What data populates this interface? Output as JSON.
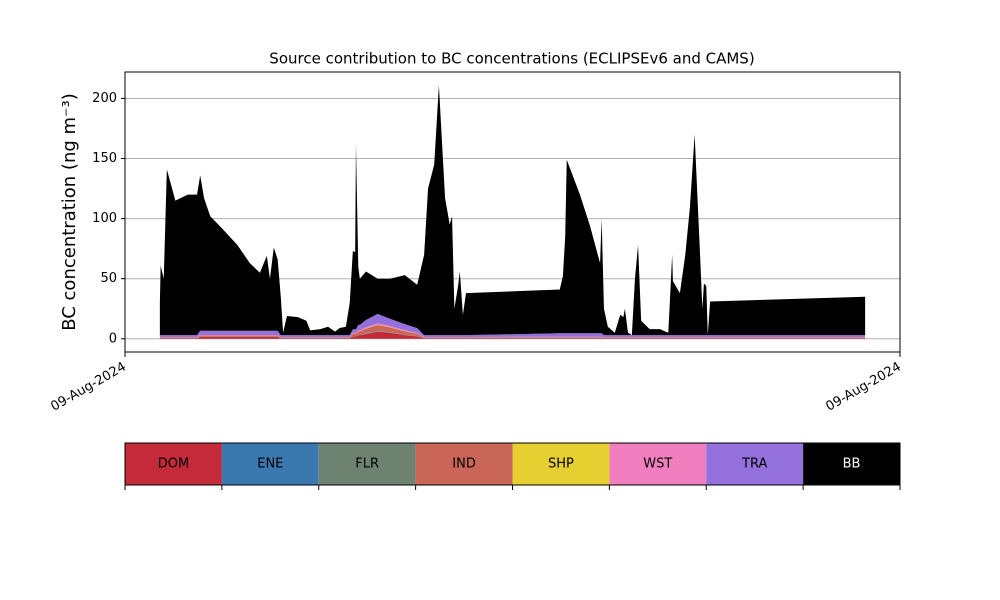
{
  "chart_data": {
    "type": "stacked_area",
    "title": "Source contribution to BC concentrations (ECLIPSEv6 and CAMS)",
    "ylabel": "BC concentration (ng m⁻³)",
    "x": [
      0.045,
      0.046,
      0.05,
      0.054,
      0.065,
      0.081,
      0.093,
      0.097,
      0.102,
      0.11,
      0.125,
      0.145,
      0.161,
      0.174,
      0.183,
      0.187,
      0.192,
      0.197,
      0.201,
      0.204,
      0.209,
      0.223,
      0.234,
      0.239,
      0.252,
      0.262,
      0.271,
      0.277,
      0.285,
      0.29,
      0.294,
      0.297,
      0.298,
      0.301,
      0.303,
      0.311,
      0.326,
      0.342,
      0.361,
      0.377,
      0.386,
      0.391,
      0.399,
      0.405,
      0.413,
      0.419,
      0.422,
      0.425,
      0.43,
      0.432,
      0.436,
      0.44,
      0.561,
      0.565,
      0.568,
      0.57,
      0.587,
      0.6,
      0.61,
      0.613,
      0.615,
      0.618,
      0.623,
      0.632,
      0.639,
      0.643,
      0.645,
      0.649,
      0.654,
      0.658,
      0.662,
      0.666,
      0.677,
      0.69,
      0.701,
      0.703,
      0.706,
      0.707,
      0.716,
      0.723,
      0.729,
      0.735,
      0.742,
      0.745,
      0.747,
      0.75,
      0.752,
      0.755,
      0.955
    ],
    "xlim": [
      0,
      1
    ],
    "xticks": [
      {
        "value": 0,
        "label": "09-Aug-2024"
      },
      {
        "value": 1,
        "label": "09-Aug-2024"
      }
    ],
    "ylim": [
      -11,
      222
    ],
    "yticks": [
      0,
      50,
      100,
      150,
      200
    ],
    "grid": true,
    "legend": "bottom",
    "series": [
      {
        "name": "DOM",
        "color": "#c52a3a",
        "values": [
          0.5,
          0.5,
          0.5,
          0.5,
          0.5,
          0.5,
          0.5,
          1.5,
          1.5,
          1.5,
          1.5,
          1.5,
          1.5,
          1.5,
          1.5,
          1.5,
          1.5,
          1.5,
          0.5,
          0.5,
          0.5,
          0.5,
          0.5,
          0.5,
          0.5,
          0.5,
          0.5,
          0.5,
          0.5,
          0.5,
          2,
          2,
          2,
          3,
          3,
          4,
          6,
          5,
          3,
          2,
          0.5,
          0.5,
          0.5,
          0.5,
          0.5,
          0.5,
          0.5,
          0.5,
          0.5,
          0.5,
          0.5,
          0.5,
          0.5,
          0.5,
          0.5,
          0.5,
          0.5,
          0.5,
          0.5,
          0.5,
          0.5,
          0.5,
          0.5,
          0.5,
          0.5,
          0.5,
          0.5,
          0.5,
          0.5,
          0.5,
          0.5,
          0.5,
          0.5,
          0.5,
          0.5,
          0.5,
          0.5,
          0.5,
          0.5,
          0.5,
          0.5,
          0.5,
          0.5,
          0.5,
          0.5,
          0.5,
          0.5,
          0.5,
          0.5
        ]
      },
      {
        "name": "ENE",
        "color": "#3a78b0",
        "values": [
          0.1,
          0.1,
          0.1,
          0.1,
          0.1,
          0.1,
          0.1,
          0.1,
          0.1,
          0.1,
          0.1,
          0.1,
          0.1,
          0.1,
          0.1,
          0.1,
          0.1,
          0.1,
          0.1,
          0.1,
          0.1,
          0.1,
          0.1,
          0.1,
          0.1,
          0.1,
          0.1,
          0.1,
          0.1,
          0.1,
          0.1,
          0.1,
          0.1,
          0.1,
          0.1,
          0.2,
          0.2,
          0.2,
          0.1,
          0.1,
          0.1,
          0.1,
          0.1,
          0.1,
          0.1,
          0.1,
          0.1,
          0.1,
          0.1,
          0.1,
          0.1,
          0.1,
          0.1,
          0.1,
          0.1,
          0.1,
          0.1,
          0.1,
          0.1,
          0.1,
          0.1,
          0.1,
          0.1,
          0.1,
          0.1,
          0.1,
          0.1,
          0.1,
          0.1,
          0.1,
          0.1,
          0.1,
          0.1,
          0.1,
          0.1,
          0.1,
          0.1,
          0.1,
          0.1,
          0.1,
          0.1,
          0.1,
          0.1,
          0.1,
          0.1,
          0.1,
          0.1,
          0.1,
          0.1
        ]
      },
      {
        "name": "FLR",
        "color": "#6e8272",
        "values": [
          0.1,
          0.1,
          0.1,
          0.1,
          0.1,
          0.1,
          0.1,
          0.2,
          0.2,
          0.2,
          0.2,
          0.2,
          0.2,
          0.2,
          0.2,
          0.2,
          0.2,
          0.2,
          0.1,
          0.1,
          0.1,
          0.1,
          0.1,
          0.1,
          0.1,
          0.1,
          0.1,
          0.1,
          0.1,
          0.1,
          0.2,
          0.2,
          0.2,
          0.2,
          0.2,
          0.3,
          0.3,
          0.3,
          0.2,
          0.2,
          0.1,
          0.1,
          0.1,
          0.1,
          0.1,
          0.1,
          0.1,
          0.1,
          0.1,
          0.1,
          0.1,
          0.1,
          0.1,
          0.1,
          0.1,
          0.1,
          0.1,
          0.1,
          0.1,
          0.1,
          0.1,
          0.1,
          0.1,
          0.1,
          0.1,
          0.1,
          0.1,
          0.1,
          0.1,
          0.1,
          0.1,
          0.1,
          0.1,
          0.1,
          0.1,
          0.1,
          0.1,
          0.1,
          0.1,
          0.1,
          0.1,
          0.1,
          0.1,
          0.1,
          0.1,
          0.1,
          0.1,
          0.1,
          0.1
        ]
      },
      {
        "name": "IND",
        "color": "#c96657",
        "values": [
          0.5,
          0.5,
          0.5,
          0.5,
          0.5,
          0.5,
          0.5,
          1,
          1,
          1,
          1,
          1,
          1,
          1,
          1,
          1,
          1,
          1,
          0.5,
          0.5,
          0.5,
          0.5,
          0.5,
          0.5,
          0.5,
          0.5,
          0.5,
          0.5,
          0.5,
          0.5,
          2,
          2,
          2,
          3,
          3,
          4,
          5,
          4,
          3,
          2,
          0.5,
          0.5,
          0.5,
          0.5,
          0.5,
          0.5,
          0.5,
          0.5,
          0.5,
          0.5,
          0.5,
          0.5,
          0.5,
          0.5,
          0.5,
          0.5,
          0.5,
          0.5,
          0.5,
          0.5,
          0.5,
          0.5,
          0.5,
          0.5,
          0.5,
          0.5,
          0.5,
          0.5,
          0.5,
          0.5,
          0.5,
          0.5,
          0.5,
          0.5,
          0.5,
          0.5,
          0.5,
          0.5,
          0.5,
          0.5,
          0.5,
          0.5,
          0.5,
          0.5,
          0.5,
          0.5,
          0.5,
          0.5,
          0.5
        ]
      },
      {
        "name": "SHP",
        "color": "#e6cf30",
        "values": [
          0.1,
          0.1,
          0.1,
          0.1,
          0.1,
          0.1,
          0.1,
          0.1,
          0.1,
          0.1,
          0.1,
          0.1,
          0.1,
          0.1,
          0.1,
          0.1,
          0.1,
          0.1,
          0.1,
          0.1,
          0.1,
          0.1,
          0.1,
          0.1,
          0.1,
          0.1,
          0.1,
          0.1,
          0.1,
          0.1,
          0.1,
          0.1,
          0.1,
          0.1,
          0.1,
          0.2,
          0.2,
          0.2,
          0.1,
          0.1,
          0.1,
          0.1,
          0.1,
          0.1,
          0.1,
          0.1,
          0.1,
          0.1,
          0.1,
          0.1,
          0.1,
          0.1,
          0.1,
          0.1,
          0.1,
          0.1,
          0.1,
          0.1,
          0.1,
          0.1,
          0.1,
          0.1,
          0.1,
          0.1,
          0.1,
          0.1,
          0.1,
          0.1,
          0.1,
          0.1,
          0.1,
          0.1,
          0.1,
          0.1,
          0.1,
          0.1,
          0.1,
          0.1,
          0.1,
          0.1,
          0.1,
          0.1,
          0.1,
          0.1,
          0.1,
          0.1,
          0.1,
          0.1,
          0.1
        ]
      },
      {
        "name": "WST",
        "color": "#f17fbf",
        "values": [
          0.2,
          0.2,
          0.2,
          0.2,
          0.2,
          0.2,
          0.2,
          0.3,
          0.3,
          0.3,
          0.3,
          0.3,
          0.3,
          0.3,
          0.3,
          0.3,
          0.3,
          0.3,
          0.2,
          0.2,
          0.2,
          0.2,
          0.2,
          0.2,
          0.2,
          0.2,
          0.2,
          0.2,
          0.2,
          0.2,
          0.5,
          0.5,
          0.5,
          0.7,
          0.7,
          1,
          1,
          1,
          0.8,
          0.5,
          0.2,
          0.2,
          0.2,
          0.2,
          0.2,
          0.2,
          0.2,
          0.2,
          0.2,
          0.2,
          0.2,
          0.2,
          0.3,
          0.3,
          0.3,
          0.3,
          0.3,
          0.3,
          0.3,
          0.3,
          0.3,
          0.2,
          0.2,
          0.2,
          0.2,
          0.2,
          0.2,
          0.2,
          0.2,
          0.2,
          0.2,
          0.2,
          0.2,
          0.2,
          0.2,
          0.2,
          0.2,
          0.2,
          0.2,
          0.2,
          0.2,
          0.2,
          0.2,
          0.2,
          0.2,
          0.2,
          0.2,
          0.2,
          0.2
        ]
      },
      {
        "name": "TRA",
        "color": "#9370db",
        "values": [
          1.5,
          1.5,
          1.5,
          1.5,
          1.5,
          1.5,
          1.5,
          3.5,
          3.5,
          3.5,
          3.5,
          3.5,
          3.5,
          3.5,
          3.5,
          3.5,
          3.5,
          3.5,
          1.5,
          1.5,
          1.5,
          1.5,
          1.5,
          1.5,
          1.5,
          1.5,
          1.5,
          1.5,
          1.5,
          1.5,
          3,
          3,
          3,
          4.5,
          4.5,
          6,
          8,
          6,
          5,
          4,
          1.5,
          1.5,
          1.5,
          1.5,
          1.5,
          1.5,
          1.5,
          1.5,
          1.5,
          1.5,
          1.5,
          1.5,
          3,
          3,
          3,
          3,
          3,
          3,
          3,
          3,
          3,
          1.5,
          1.5,
          1.5,
          1.5,
          1.5,
          1.5,
          1.5,
          1.5,
          1.5,
          1.5,
          1.5,
          1.5,
          1.5,
          1.5,
          1.5,
          1.5,
          1.5,
          1.5,
          1.5,
          1.5,
          1.5,
          1.5,
          1.5,
          1.5,
          1.5,
          1.5,
          1.5,
          1.5
        ]
      },
      {
        "name": "BB",
        "color": "#000000",
        "values": [
          27,
          58,
          47,
          138,
          112,
          117,
          117,
          129.3,
          110.3,
          95.3,
          85.3,
          71.3,
          56.3,
          48.3,
          62.3,
          43.3,
          69.3,
          59.3,
          32,
          2,
          16,
          15,
          12,
          4,
          5,
          7,
          3,
          6,
          7,
          27,
          65.1,
          64.1,
          154.1,
          48.4,
          38.4,
          40.3,
          29.3,
          33.3,
          40.8,
          36.1,
          67,
          122,
          142,
          208,
          114,
          92,
          99,
          22,
          42,
          53,
          17,
          35,
          36.4,
          47.4,
          80.4,
          144.4,
          115.4,
          89.4,
          65.4,
          58.4,
          95.4,
          22,
          7,
          2,
          17,
          15,
          22,
          2,
          0,
          47,
          75,
          12,
          5,
          5,
          2,
          27,
          67,
          45,
          35,
          67,
          107,
          167,
          67,
          22,
          43,
          41,
          0,
          28,
          32
        ]
      }
    ]
  }
}
